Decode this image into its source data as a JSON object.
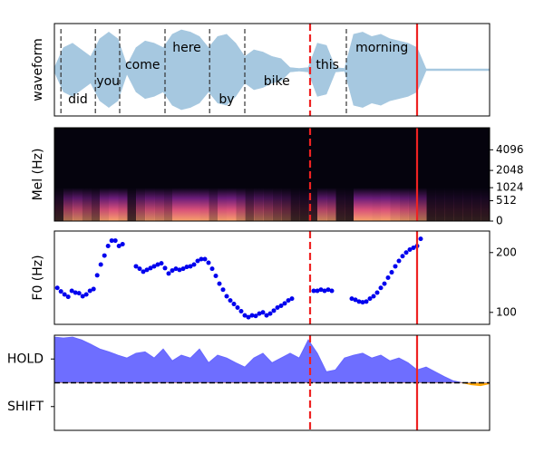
{
  "chart_data": [
    {
      "type": "waveform",
      "ylabel": "waveform",
      "xlim": [
        0,
        12
      ],
      "color": "#a6c8e0",
      "x": [
        0,
        0.25,
        0.5,
        0.75,
        1,
        1.25,
        1.5,
        1.75,
        2,
        2.25,
        2.5,
        2.75,
        3,
        3.25,
        3.5,
        3.75,
        4,
        4.25,
        4.5,
        4.75,
        5,
        5.25,
        5.5,
        5.75,
        6,
        6.25,
        6.5,
        6.75,
        7,
        7.25,
        7.5,
        7.75,
        8,
        8.25,
        8.5,
        8.75,
        9,
        9.25,
        9.5,
        9.75,
        10,
        10.25,
        10.5,
        10.75,
        11,
        11.25,
        11.5,
        11.75,
        12
      ],
      "values": [
        0.05,
        0.5,
        0.6,
        0.45,
        0.3,
        0.7,
        0.85,
        0.7,
        0.1,
        0.5,
        0.65,
        0.6,
        0.5,
        0.8,
        0.9,
        0.85,
        0.75,
        0.5,
        0.75,
        0.8,
        0.6,
        0.3,
        0.45,
        0.4,
        0.3,
        0.25,
        0.05,
        0.03,
        0.05,
        0.6,
        0.55,
        0.05,
        0.03,
        0.8,
        0.85,
        0.75,
        0.8,
        0.7,
        0.65,
        0.6,
        0.5,
        0.02,
        0.02,
        0.02,
        0.02,
        0.02,
        0.02,
        0.02,
        0.02
      ],
      "words": [
        {
          "text": "did",
          "x": 0.65
        },
        {
          "text": "you",
          "x": 1.48
        },
        {
          "text": "come",
          "x": 2.43
        },
        {
          "text": "here",
          "x": 3.65
        },
        {
          "text": "by",
          "x": 4.75
        },
        {
          "text": "bike",
          "x": 6.13
        },
        {
          "text": "this",
          "x": 7.53
        },
        {
          "text": "morning",
          "x": 9.03
        }
      ],
      "word_boundaries": [
        0.18,
        1.13,
        1.8,
        3.05,
        4.28,
        5.25,
        8.05
      ],
      "vlines": [
        {
          "x": 7.05,
          "style": "dashed",
          "color": "#ee2222"
        },
        {
          "x": 10.0,
          "style": "solid",
          "color": "#ee2222"
        }
      ]
    },
    {
      "type": "spectrogram",
      "ylabel": "Mel (Hz)",
      "xlim": [
        0,
        12
      ],
      "ylim": [
        0,
        8000
      ],
      "yscale": "mel",
      "yticks": [
        0,
        512,
        1024,
        2048,
        4096
      ],
      "ytick_side": "right"
    },
    {
      "type": "scatter",
      "ylabel": "F0 (Hz)",
      "xlim": [
        0,
        12
      ],
      "ylim": [
        80,
        236
      ],
      "yticks": [
        100,
        200
      ],
      "ytick_side": "right",
      "color": "#0000ee",
      "x": [
        0.08,
        0.18,
        0.28,
        0.38,
        0.48,
        0.58,
        0.68,
        0.78,
        0.88,
        0.98,
        1.08,
        1.18,
        1.28,
        1.38,
        1.48,
        1.58,
        1.68,
        1.78,
        1.88,
        2.25,
        2.35,
        2.45,
        2.55,
        2.65,
        2.75,
        2.85,
        2.95,
        3.05,
        3.15,
        3.25,
        3.35,
        3.45,
        3.55,
        3.65,
        3.75,
        3.85,
        3.95,
        4.05,
        4.15,
        4.25,
        4.35,
        4.45,
        4.55,
        4.65,
        4.75,
        4.85,
        4.95,
        5.05,
        5.15,
        5.25,
        5.35,
        5.45,
        5.55,
        5.65,
        5.75,
        5.85,
        5.95,
        6.05,
        6.15,
        6.25,
        6.35,
        6.45,
        6.55,
        7.15,
        7.25,
        7.35,
        7.45,
        7.55,
        7.65,
        8.2,
        8.3,
        8.4,
        8.5,
        8.6,
        8.7,
        8.8,
        8.9,
        9.0,
        9.1,
        9.2,
        9.3,
        9.4,
        9.5,
        9.6,
        9.7,
        9.8,
        9.9,
        10.0,
        10.1
      ],
      "values": [
        141,
        135,
        130,
        126,
        136,
        133,
        132,
        127,
        130,
        136,
        139,
        162,
        180,
        195,
        211,
        220,
        220,
        211,
        214,
        177,
        173,
        168,
        171,
        174,
        177,
        180,
        182,
        174,
        165,
        170,
        173,
        171,
        173,
        176,
        177,
        180,
        186,
        189,
        189,
        183,
        173,
        161,
        148,
        138,
        127,
        120,
        114,
        108,
        102,
        95,
        92,
        95,
        94,
        98,
        100,
        95,
        98,
        103,
        108,
        111,
        115,
        120,
        123,
        136,
        136,
        138,
        136,
        138,
        136,
        123,
        121,
        118,
        117,
        118,
        123,
        127,
        133,
        141,
        148,
        158,
        167,
        177,
        186,
        194,
        200,
        205,
        208,
        211,
        223
      ]
    },
    {
      "type": "area",
      "xlim": [
        0,
        12
      ],
      "ylim": [
        -1,
        1
      ],
      "yticks": [
        {
          "value": 0.5,
          "label": "HOLD"
        },
        {
          "value": -0.5,
          "label": "SHIFT"
        }
      ],
      "color": "#6666ff",
      "negative_color": "#ffa500",
      "x": [
        0,
        0.25,
        0.5,
        0.75,
        1,
        1.25,
        1.5,
        1.75,
        2,
        2.25,
        2.5,
        2.75,
        3,
        3.25,
        3.5,
        3.75,
        4,
        4.25,
        4.5,
        4.75,
        5,
        5.25,
        5.5,
        5.75,
        6,
        6.25,
        6.5,
        6.75,
        7,
        7.25,
        7.5,
        7.75,
        8,
        8.25,
        8.5,
        8.75,
        9,
        9.25,
        9.5,
        9.75,
        10,
        10.25,
        10.5,
        10.75,
        11,
        11.25,
        11.5,
        11.75,
        12
      ],
      "values": [
        0.96,
        0.94,
        0.96,
        0.9,
        0.81,
        0.71,
        0.65,
        0.58,
        0.52,
        0.62,
        0.65,
        0.52,
        0.71,
        0.46,
        0.58,
        0.52,
        0.71,
        0.42,
        0.58,
        0.52,
        0.42,
        0.33,
        0.52,
        0.62,
        0.42,
        0.52,
        0.62,
        0.52,
        0.9,
        0.62,
        0.23,
        0.27,
        0.52,
        0.58,
        0.62,
        0.52,
        0.58,
        0.46,
        0.52,
        0.42,
        0.27,
        0.33,
        0.23,
        0.13,
        0.04,
        0,
        -0.04,
        -0.06,
        -0.02
      ]
    }
  ]
}
